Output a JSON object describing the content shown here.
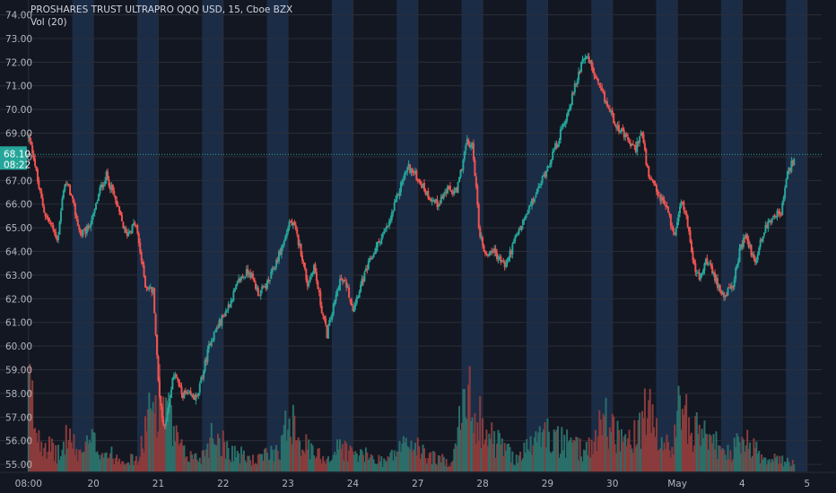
{
  "chart_data": {
    "type": "candlestick",
    "title": "PROSHARES TRUST ULTRAPRO QQQ USD, 15, Cboe BZX",
    "indicator": "Vol (20)",
    "y_ticks": [
      "55.00",
      "56.00",
      "57.00",
      "58.00",
      "59.00",
      "60.00",
      "61.00",
      "62.00",
      "63.00",
      "64.00",
      "65.00",
      "66.00",
      "67.00",
      "68.00",
      "69.00",
      "70.00",
      "71.00",
      "72.00",
      "73.00",
      "74.00"
    ],
    "ylim": [
      54.7,
      74.4
    ],
    "x_ticks": [
      {
        "label": "08:00",
        "t": 0
      },
      {
        "label": "20",
        "t": 2
      },
      {
        "label": "21",
        "t": 4
      },
      {
        "label": "22",
        "t": 6
      },
      {
        "label": "23",
        "t": 8
      },
      {
        "label": "24",
        "t": 10
      },
      {
        "label": "27",
        "t": 12
      },
      {
        "label": "28",
        "t": 14
      },
      {
        "label": "29",
        "t": 16
      },
      {
        "label": "30",
        "t": 18
      },
      {
        "label": "May",
        "t": 20
      },
      {
        "label": "4",
        "t": 22
      },
      {
        "label": "5",
        "t": 24
      }
    ],
    "xlim": [
      -0.05,
      24.45
    ],
    "session_shading": [
      [
        1.35,
        2.0
      ],
      [
        3.35,
        4.0
      ],
      [
        5.35,
        6.0
      ],
      [
        7.35,
        8.0
      ],
      [
        9.35,
        10.0
      ],
      [
        11.35,
        12.0
      ],
      [
        13.35,
        14.0
      ],
      [
        15.35,
        16.0
      ],
      [
        17.35,
        18.0
      ],
      [
        19.35,
        20.0
      ],
      [
        21.35,
        22.0
      ],
      [
        23.35,
        24.0
      ]
    ],
    "price_path": [
      [
        0.0,
        68.8
      ],
      [
        0.15,
        68.1
      ],
      [
        0.3,
        66.8
      ],
      [
        0.5,
        65.6
      ],
      [
        0.7,
        65.1
      ],
      [
        0.9,
        64.5
      ],
      [
        1.1,
        66.9
      ],
      [
        1.25,
        66.7
      ],
      [
        1.6,
        64.7
      ],
      [
        1.8,
        64.9
      ],
      [
        2.0,
        65.5
      ],
      [
        2.2,
        66.6
      ],
      [
        2.4,
        67.2
      ],
      [
        2.6,
        66.5
      ],
      [
        2.8,
        65.6
      ],
      [
        3.0,
        64.7
      ],
      [
        3.3,
        65.2
      ],
      [
        3.6,
        62.6
      ],
      [
        3.85,
        62.3
      ],
      [
        4.0,
        58.5
      ],
      [
        4.15,
        56.6
      ],
      [
        4.3,
        57.2
      ],
      [
        4.5,
        59.0
      ],
      [
        4.7,
        58.0
      ],
      [
        5.2,
        57.8
      ],
      [
        5.6,
        60.2
      ],
      [
        5.9,
        61.0
      ],
      [
        6.2,
        61.8
      ],
      [
        6.5,
        62.8
      ],
      [
        6.8,
        63.2
      ],
      [
        7.1,
        62.2
      ],
      [
        7.4,
        62.7
      ],
      [
        7.7,
        63.8
      ],
      [
        7.9,
        64.5
      ],
      [
        8.05,
        65.3
      ],
      [
        8.2,
        65.0
      ],
      [
        8.4,
        64.0
      ],
      [
        8.6,
        62.6
      ],
      [
        8.8,
        63.4
      ],
      [
        9.0,
        61.8
      ],
      [
        9.2,
        60.5
      ],
      [
        9.6,
        62.8
      ],
      [
        9.8,
        62.6
      ],
      [
        10.0,
        61.6
      ],
      [
        10.2,
        62.4
      ],
      [
        10.5,
        63.5
      ],
      [
        10.8,
        64.4
      ],
      [
        11.1,
        65.1
      ],
      [
        11.5,
        66.9
      ],
      [
        11.7,
        67.6
      ],
      [
        12.0,
        67.1
      ],
      [
        12.3,
        66.4
      ],
      [
        12.6,
        66.0
      ],
      [
        12.9,
        66.6
      ],
      [
        13.2,
        66.5
      ],
      [
        13.5,
        68.6
      ],
      [
        13.7,
        68.4
      ],
      [
        13.9,
        64.8
      ],
      [
        14.1,
        63.8
      ],
      [
        14.3,
        64.1
      ],
      [
        14.5,
        63.7
      ],
      [
        14.7,
        63.4
      ],
      [
        15.0,
        64.5
      ],
      [
        15.3,
        65.4
      ],
      [
        15.7,
        66.6
      ],
      [
        16.0,
        67.6
      ],
      [
        16.3,
        68.6
      ],
      [
        16.6,
        69.8
      ],
      [
        16.9,
        71.2
      ],
      [
        17.1,
        72.3
      ],
      [
        17.3,
        72.0
      ],
      [
        17.5,
        71.2
      ],
      [
        17.8,
        70.3
      ],
      [
        18.1,
        69.4
      ],
      [
        18.4,
        68.8
      ],
      [
        18.7,
        68.3
      ],
      [
        18.9,
        69.1
      ],
      [
        19.1,
        67.2
      ],
      [
        19.4,
        66.4
      ],
      [
        19.7,
        65.8
      ],
      [
        19.9,
        64.6
      ],
      [
        20.1,
        66.2
      ],
      [
        20.3,
        65.4
      ],
      [
        20.5,
        63.4
      ],
      [
        20.7,
        62.8
      ],
      [
        20.9,
        63.7
      ],
      [
        21.1,
        63.0
      ],
      [
        21.4,
        62.2
      ],
      [
        21.7,
        62.4
      ],
      [
        21.9,
        63.9
      ],
      [
        22.1,
        64.7
      ],
      [
        22.4,
        63.5
      ],
      [
        22.6,
        64.6
      ],
      [
        22.8,
        65.2
      ],
      [
        23.0,
        65.6
      ],
      [
        23.2,
        65.6
      ],
      [
        23.4,
        67.3
      ],
      [
        23.6,
        67.9
      ]
    ],
    "last_price": "68.10",
    "last_price_value": 68.1,
    "countdown": "08:22",
    "volume_profile": [
      [
        0.05,
        0.95
      ],
      [
        0.2,
        0.55
      ],
      [
        0.4,
        0.4
      ],
      [
        0.7,
        0.25
      ],
      [
        1.0,
        0.18
      ],
      [
        1.2,
        0.45
      ],
      [
        1.5,
        0.2
      ],
      [
        2.0,
        0.35
      ],
      [
        2.2,
        0.25
      ],
      [
        2.6,
        0.18
      ],
      [
        3.0,
        0.15
      ],
      [
        3.4,
        0.12
      ],
      [
        3.6,
        0.5
      ],
      [
        4.0,
        0.9
      ],
      [
        4.2,
        0.8
      ],
      [
        4.5,
        0.4
      ],
      [
        4.8,
        0.2
      ],
      [
        5.3,
        0.15
      ],
      [
        5.7,
        0.45
      ],
      [
        6.2,
        0.25
      ],
      [
        6.6,
        0.18
      ],
      [
        7.0,
        0.12
      ],
      [
        7.4,
        0.2
      ],
      [
        7.8,
        0.3
      ],
      [
        8.1,
        0.75
      ],
      [
        8.4,
        0.35
      ],
      [
        8.8,
        0.2
      ],
      [
        9.3,
        0.15
      ],
      [
        9.6,
        0.3
      ],
      [
        10.0,
        0.2
      ],
      [
        10.4,
        0.18
      ],
      [
        11.0,
        0.12
      ],
      [
        11.4,
        0.25
      ],
      [
        11.7,
        0.35
      ],
      [
        12.2,
        0.2
      ],
      [
        12.6,
        0.15
      ],
      [
        13.0,
        0.1
      ],
      [
        13.5,
        0.85
      ],
      [
        13.8,
        0.7
      ],
      [
        14.2,
        0.4
      ],
      [
        14.6,
        0.3
      ],
      [
        15.0,
        0.15
      ],
      [
        15.5,
        0.3
      ],
      [
        15.9,
        0.45
      ],
      [
        16.3,
        0.35
      ],
      [
        16.7,
        0.3
      ],
      [
        17.0,
        0.25
      ],
      [
        17.4,
        0.3
      ],
      [
        17.7,
        0.65
      ],
      [
        18.1,
        0.45
      ],
      [
        18.4,
        0.35
      ],
      [
        18.8,
        0.4
      ],
      [
        19.1,
        0.75
      ],
      [
        19.4,
        0.35
      ],
      [
        19.8,
        0.25
      ],
      [
        20.1,
        0.8
      ],
      [
        20.4,
        0.5
      ],
      [
        20.8,
        0.4
      ],
      [
        21.2,
        0.3
      ],
      [
        21.6,
        0.2
      ],
      [
        22.0,
        0.35
      ],
      [
        22.4,
        0.25
      ],
      [
        22.8,
        0.15
      ],
      [
        23.2,
        0.12
      ],
      [
        23.6,
        0.1
      ]
    ],
    "colors": {
      "background": "#131722",
      "session": "#1b2c47",
      "grid": "#2a2e39",
      "up": "#26a69a",
      "down": "#ef5350",
      "vol_up": "#2a6e69",
      "vol_down": "#8a3b3b",
      "last_line": "#26a69a",
      "text": "#b2b5be"
    }
  }
}
